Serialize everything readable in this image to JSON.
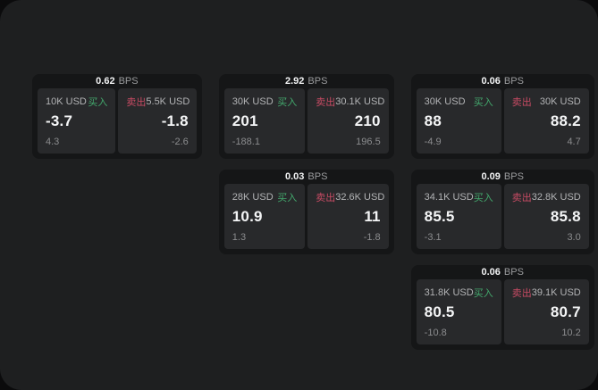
{
  "labels": {
    "bps": "BPS",
    "buy": "买入",
    "sell": "卖出"
  },
  "colors": {
    "buy_green": "#43a96d",
    "sell_red": "#c84b64",
    "screen_bg": "#1e1f20",
    "card_bg": "#151617",
    "panel_bg": "#28292b",
    "primary_text": "#f4f5f6",
    "secondary_text": "#b3b4b6",
    "muted_text": "#8b8c8e"
  },
  "cards": [
    {
      "bps": "0.62",
      "buy": {
        "amount": "10K USD",
        "value": "-3.7",
        "delta": "4.3"
      },
      "sell": {
        "amount": "5.5K USD",
        "value": "-1.8",
        "delta": "-2.6"
      }
    },
    {
      "bps": "2.92",
      "buy": {
        "amount": "30K USD",
        "value": "201",
        "delta": "-188.1"
      },
      "sell": {
        "amount": "30.1K USD",
        "value": "210",
        "delta": "196.5"
      }
    },
    {
      "bps": "0.06",
      "buy": {
        "amount": "30K USD",
        "value": "88",
        "delta": "-4.9"
      },
      "sell": {
        "amount": "30K USD",
        "value": "88.2",
        "delta": "4.7"
      }
    },
    {
      "bps": "0.03",
      "buy": {
        "amount": "28K USD",
        "value": "10.9",
        "delta": "1.3"
      },
      "sell": {
        "amount": "32.6K USD",
        "value": "11",
        "delta": "-1.8"
      }
    },
    {
      "bps": "0.09",
      "buy": {
        "amount": "34.1K USD",
        "value": "85.5",
        "delta": "-3.1"
      },
      "sell": {
        "amount": "32.8K USD",
        "value": "85.8",
        "delta": "3.0"
      }
    },
    {
      "bps": "0.06",
      "buy": {
        "amount": "31.8K USD",
        "value": "80.5",
        "delta": "-10.8"
      },
      "sell": {
        "amount": "39.1K USD",
        "value": "80.7",
        "delta": "10.2"
      }
    }
  ]
}
